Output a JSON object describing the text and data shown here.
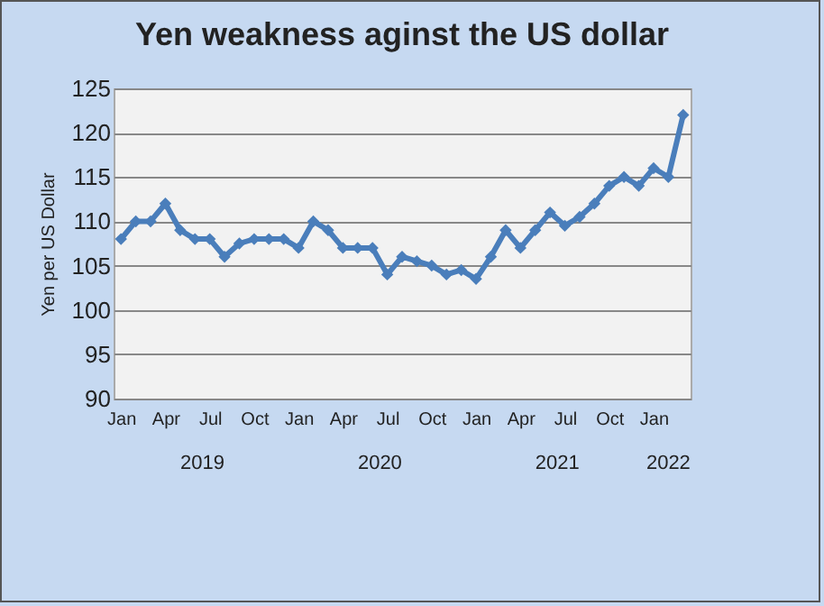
{
  "chart_data": {
    "type": "line",
    "title": "Yen weakness aginst the US dollar",
    "ylabel": "Yen per US Dollar",
    "categories": [
      "Jan",
      null,
      null,
      "Apr",
      null,
      null,
      "Jul",
      null,
      null,
      "Oct",
      null,
      null,
      "Jan",
      null,
      null,
      "Apr",
      null,
      null,
      "Jul",
      null,
      null,
      "Oct",
      null,
      null,
      "Jan",
      null,
      null,
      "Apr",
      null,
      null,
      "Jul",
      null,
      null,
      "Oct",
      null,
      null,
      "Jan",
      null,
      null
    ],
    "series": [
      {
        "color": "#4a7ebb",
        "values": [
          108,
          110,
          110,
          112,
          109,
          108,
          108,
          106,
          107.5,
          108,
          108,
          108,
          107,
          110,
          109,
          107,
          107,
          107,
          104,
          106,
          105.5,
          105,
          104,
          104.5,
          103.5,
          106,
          109,
          107,
          109,
          111,
          109.5,
          110.5,
          112,
          114,
          115,
          114,
          116,
          115,
          122
        ]
      }
    ],
    "annotations": [
      "2019",
      "2020",
      "2021",
      "2022"
    ],
    "ylim": [
      90,
      125
    ],
    "yticks": [
      90,
      95,
      100,
      105,
      110,
      115,
      120,
      125
    ],
    "grid": "y",
    "marker": "diamond",
    "line_style": "solid"
  }
}
